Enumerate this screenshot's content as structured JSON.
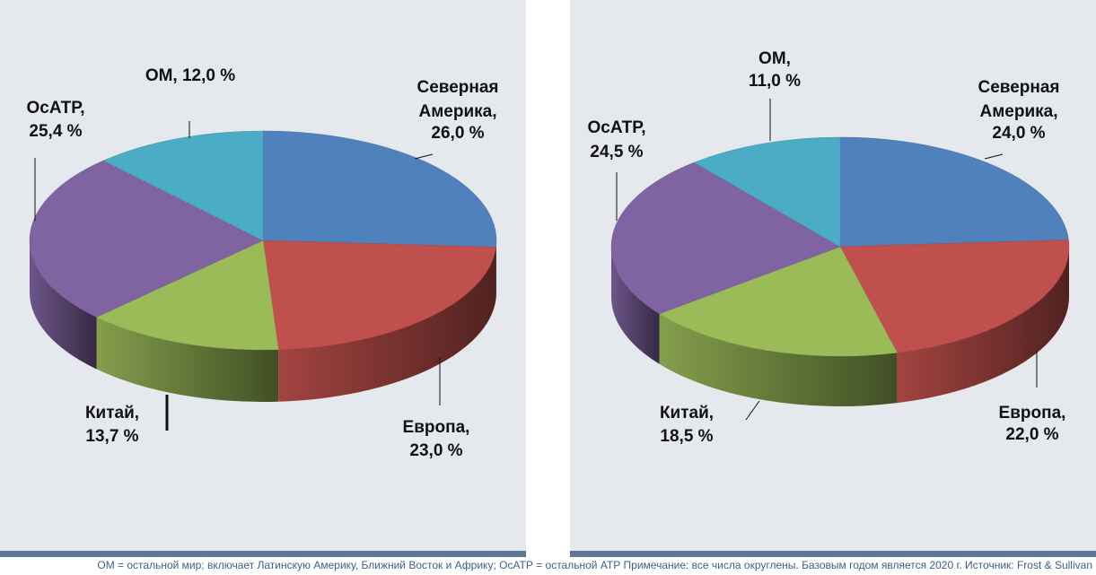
{
  "chart_data": [
    {
      "type": "pie",
      "title": "",
      "slices": [
        {
          "label": "Северная Америка",
          "value": 26.0,
          "text": "26,0 %",
          "color": "#4f81bd"
        },
        {
          "label": "Европа",
          "value": 23.0,
          "text": "23,0 %",
          "color": "#c0504d"
        },
        {
          "label": "Китай",
          "value": 13.7,
          "text": "13,7 %",
          "color": "#9bbb59"
        },
        {
          "label": "ОсАТР",
          "value": 25.4,
          "text": "25,4 %",
          "color": "#8064a2"
        },
        {
          "label": "ОМ",
          "value": 12.0,
          "text": "12,0 %",
          "color": "#4bacc6"
        }
      ]
    },
    {
      "type": "pie",
      "title": "",
      "slices": [
        {
          "label": "Северная Америка",
          "value": 24.0,
          "text": "24,0 %",
          "color": "#4f81bd"
        },
        {
          "label": "Европа",
          "value": 22.0,
          "text": "22,0 %",
          "color": "#c0504d"
        },
        {
          "label": "Китай",
          "value": 18.5,
          "text": "18,5 %",
          "color": "#9bbb59"
        },
        {
          "label": "ОсАТР",
          "value": 24.5,
          "text": "24,5 %",
          "color": "#8064a2"
        },
        {
          "label": "ОМ",
          "value": 11.0,
          "text": "11,0 %",
          "color": "#4bacc6"
        }
      ]
    }
  ],
  "footnote": "ОМ = остальной мир; включает Латинскую Америку, Ближний Восток и Африку; ОсАТР = остальной АТР Примечание: все числа округлены. Базовым годом является 2020 г. Источник: Frost & Sullivan",
  "colors": {
    "panel_bg": "#e5e8ec",
    "rule": "#5b7793"
  }
}
